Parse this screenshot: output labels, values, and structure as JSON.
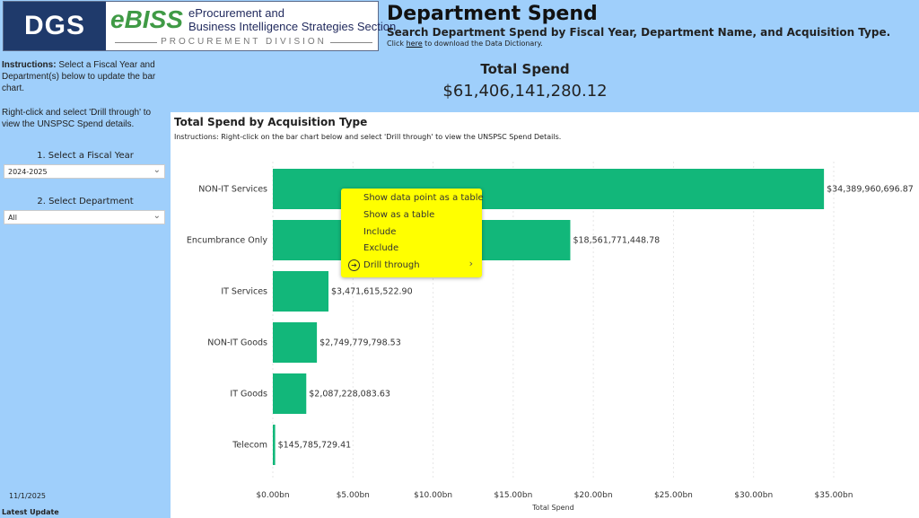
{
  "header": {
    "logo_dgs": "DGS",
    "logo_ebiss": "eBISS",
    "logo_line1": "eProcurement and",
    "logo_line2": "Business Intelligence Strategies Section",
    "logo_division": "PROCUREMENT DIVISION",
    "title": "Department Spend",
    "subtitle": "Search Department Spend by Fiscal Year, Department Name, and Acquisition Type.",
    "dict_pre": "Click ",
    "dict_link": "here",
    "dict_post": " to download the Data Dictionary."
  },
  "total": {
    "label": "Total Spend",
    "value": "$61,406,141,280.12"
  },
  "sidebar": {
    "instr_bold": "Instructions:",
    "instr": " Select a Fiscal Year and Department(s) below to update the bar chart.",
    "instr2": "Right-click and select 'Drill through' to view the UNSPSC Spend details.",
    "fy_label": "1. Select a Fiscal Year",
    "fy_value": "2024-2025",
    "dept_label": "2. Select Department",
    "dept_value": "All",
    "date": "11/1/2025",
    "latest": "Latest Update"
  },
  "chart_panel": {
    "title": "Total Spend by Acquisition Type",
    "instructions": "Instructions: Right-click on the bar chart below and select 'Drill through' to view the UNSPSC Spend Details."
  },
  "context_menu": {
    "items": [
      "Show data point as a table",
      "Show as a table",
      "Include",
      "Exclude",
      "Drill through"
    ]
  },
  "chart_data": {
    "type": "bar",
    "orientation": "horizontal",
    "xlabel": "Total Spend",
    "ylabel": "",
    "bar_color": "#12b77a",
    "xlim": [
      0,
      35000000000
    ],
    "xticks": [
      0,
      5,
      10,
      15,
      20,
      25,
      30,
      35
    ],
    "xtick_labels": [
      "$0.00bn",
      "$5.00bn",
      "$10.00bn",
      "$15.00bn",
      "$20.00bn",
      "$25.00bn",
      "$30.00bn",
      "$35.00bn"
    ],
    "categories": [
      "NON-IT Services",
      "Encumbrance Only",
      "IT Services",
      "NON-IT Goods",
      "IT Goods",
      "Telecom"
    ],
    "values": [
      34389960696.87,
      18561771448.78,
      3471615522.9,
      2749779798.53,
      2087228083.63,
      145785729.41
    ],
    "data_labels": [
      "$34,389,960,696.87",
      "$18,561,771,448.78",
      "$3,471,615,522.90",
      "$2,749,779,798.53",
      "$2,087,228,083.63",
      "$145,785,729.41"
    ]
  }
}
